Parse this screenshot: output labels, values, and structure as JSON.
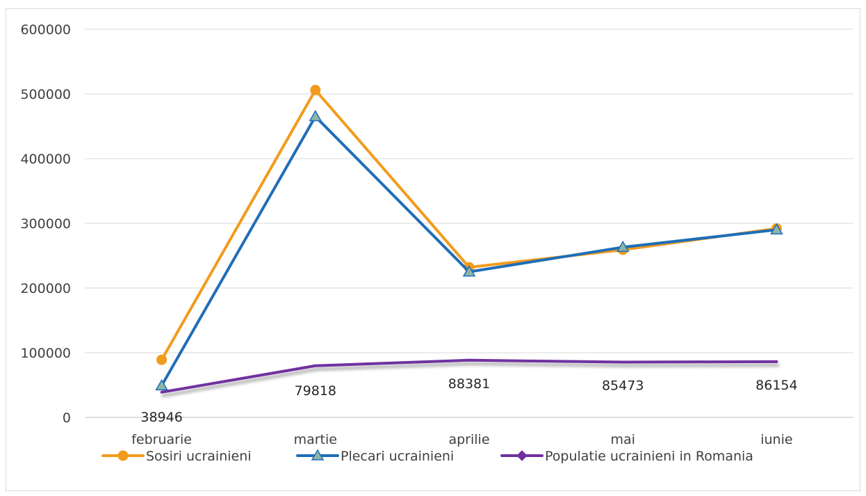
{
  "chart_data": {
    "type": "line",
    "title": "",
    "xlabel": "",
    "ylabel": "",
    "categories": [
      "februarie",
      "martie",
      "aprilie",
      "mai",
      "iunie"
    ],
    "ylim": [
      0,
      600000
    ],
    "yticks": [
      0,
      100000,
      200000,
      300000,
      400000,
      500000,
      600000
    ],
    "grid": true,
    "legend_position": "bottom",
    "series": [
      {
        "name": "Sosiri ucrainieni",
        "values": [
          89000,
          506000,
          232000,
          259000,
          292000
        ],
        "color": "#f29b1d",
        "marker": "circle"
      },
      {
        "name": "Plecari ucrainieni",
        "values": [
          49000,
          465000,
          225000,
          263000,
          290000
        ],
        "color": "#1f6eb8",
        "marker": "triangle"
      },
      {
        "name": "Populatie ucrainieni in Romania",
        "values": [
          38946,
          79818,
          88381,
          85473,
          86154
        ],
        "color": "#7030a0",
        "marker": "diamond",
        "data_labels": [
          "38946",
          "79818",
          "88381",
          "85473",
          "86154"
        ]
      }
    ]
  }
}
